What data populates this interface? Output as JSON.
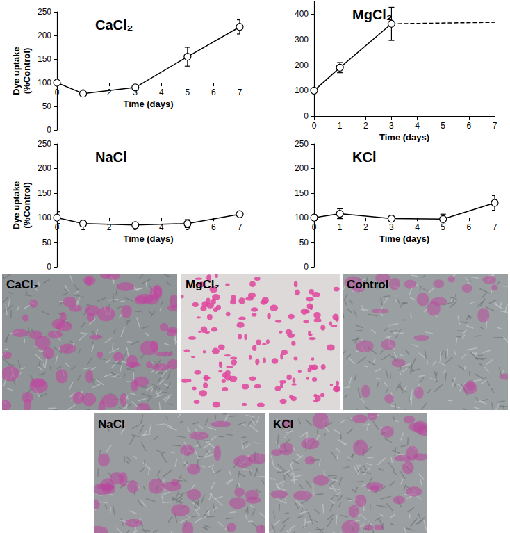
{
  "chart_data": [
    {
      "type": "line",
      "title": "CaCl₂",
      "xlabel": "Time (days)",
      "ylabel": "Dye uptake\n(%Control)",
      "xlim": [
        0,
        7
      ],
      "xticks": [
        0,
        1,
        2,
        3,
        4,
        5,
        6,
        7
      ],
      "ylim": [
        0,
        250
      ],
      "yticks": [
        0,
        50,
        100,
        150,
        200,
        250
      ],
      "x_axis_at": 100,
      "grid": false,
      "series": [
        {
          "x": [
            0,
            1,
            3,
            5,
            7
          ],
          "values": [
            100,
            77,
            90,
            155,
            218
          ],
          "errors": [
            0,
            4,
            4,
            20,
            15
          ],
          "marker": "circle",
          "line_style": "solid",
          "color": "#000000"
        }
      ]
    },
    {
      "type": "line",
      "title": "MgCl₂",
      "xlabel": "Time (days)",
      "xlim": [
        0,
        7
      ],
      "xticks": [
        0,
        1,
        2,
        3,
        4,
        5,
        6,
        7
      ],
      "ylim": [
        0,
        450
      ],
      "yticks": [
        0,
        100,
        200,
        300,
        400
      ],
      "grid": false,
      "series": [
        {
          "x": [
            0,
            1,
            3
          ],
          "values": [
            100,
            190,
            362
          ],
          "errors": [
            0,
            20,
            65
          ],
          "marker": "circle",
          "line_style": "solid",
          "color": "#000000"
        },
        {
          "x": [
            3,
            7
          ],
          "values": [
            362,
            368
          ],
          "marker": "none",
          "line_style": "dashed",
          "color": "#000000"
        }
      ]
    },
    {
      "type": "line",
      "title": "NaCl",
      "xlabel": "Time (days)",
      "ylabel": "Dye uptake\n(%Control)",
      "xlim": [
        0,
        7
      ],
      "xticks": [
        0,
        1,
        2,
        3,
        4,
        5,
        6,
        7
      ],
      "ylim": [
        0,
        250
      ],
      "yticks": [
        0,
        50,
        100,
        150,
        200,
        250
      ],
      "x_axis_at": 100,
      "grid": false,
      "series": [
        {
          "x": [
            0,
            1,
            3,
            5,
            7
          ],
          "values": [
            100,
            88,
            85,
            88,
            107
          ],
          "errors": [
            12,
            5,
            4,
            8,
            3
          ],
          "marker": "circle",
          "line_style": "solid",
          "color": "#000000"
        }
      ]
    },
    {
      "type": "line",
      "title": "KCl",
      "xlabel": "Time (days)",
      "xlim": [
        0,
        7
      ],
      "xticks": [
        0,
        1,
        2,
        3,
        4,
        5,
        6,
        7
      ],
      "ylim": [
        0,
        250
      ],
      "yticks": [
        0,
        50,
        100,
        150,
        200,
        250
      ],
      "x_axis_at": 100,
      "grid": false,
      "series": [
        {
          "x": [
            0,
            1,
            3,
            5,
            7
          ],
          "values": [
            100,
            108,
            98,
            97,
            130
          ],
          "errors": [
            6,
            10,
            5,
            10,
            15
          ],
          "marker": "circle",
          "line_style": "solid",
          "color": "#000000"
        }
      ]
    }
  ],
  "micrographs": [
    {
      "label": "CaCl₂"
    },
    {
      "label": "MgCl₂"
    },
    {
      "label": "Control"
    },
    {
      "label": "NaCl"
    },
    {
      "label": "KCl"
    }
  ]
}
